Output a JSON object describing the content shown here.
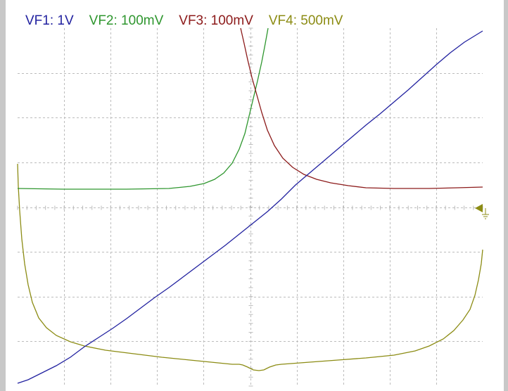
{
  "channels": [
    {
      "id": "VF1",
      "label": "VF1: 1V",
      "color": "#2222a0"
    },
    {
      "id": "VF2",
      "label": "VF2: 100mV",
      "color": "#2e962e"
    },
    {
      "id": "VF3",
      "label": "VF3: 100mV",
      "color": "#8c1a1a"
    },
    {
      "id": "VF4",
      "label": "VF4: 500mV",
      "color": "#8c8c14"
    }
  ],
  "grid": {
    "divisions_x": 10,
    "divisions_y": 8,
    "line_color": "#bcbcbc",
    "style": "dashed"
  },
  "ground_marker": {
    "icon": "ground-marker-icon",
    "color": "#8c8c14"
  },
  "background": "#ffffff"
}
